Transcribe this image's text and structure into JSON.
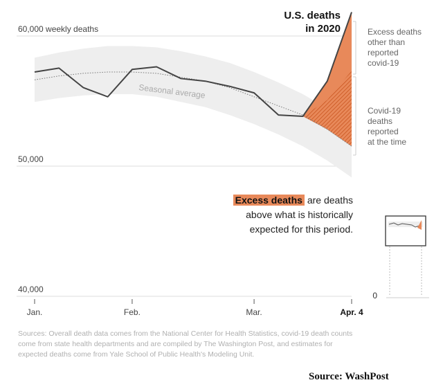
{
  "chart_data": {
    "type": "line",
    "title": "U.S. deaths in 2020",
    "y_axis_label": "60,000 weekly deaths",
    "yticks": [
      {
        "value": 60000,
        "label": "60,000 weekly deaths"
      },
      {
        "value": 50000,
        "label": "50,000"
      },
      {
        "value": 40000,
        "label": "40,000"
      }
    ],
    "ylim": [
      40000,
      61500
    ],
    "xticks": [
      {
        "week": 0,
        "label": "Jan."
      },
      {
        "week": 4,
        "label": "Feb."
      },
      {
        "week": 9,
        "label": "Mar."
      },
      {
        "week": 13,
        "label": "Apr. 4"
      }
    ],
    "series": [
      {
        "name": "U.S. deaths in 2020",
        "weeks": [
          0,
          1,
          2,
          3,
          4,
          5,
          6,
          7,
          8,
          9,
          10,
          11,
          12,
          13
        ],
        "values": [
          56700,
          57000,
          55500,
          54800,
          56900,
          57100,
          56200,
          56000,
          55600,
          55100,
          53400,
          53300,
          56000,
          61300
        ]
      }
    ],
    "seasonal_average": {
      "label": "Seasonal average",
      "weeks": [
        0,
        1,
        2,
        3,
        4,
        5,
        6,
        7,
        8,
        9,
        10,
        11,
        12,
        13
      ],
      "values": [
        56100,
        56400,
        56600,
        56700,
        56700,
        56600,
        56300,
        56000,
        55500,
        54800,
        54100,
        53400,
        52300,
        51000
      ],
      "band_upper": [
        57800,
        58200,
        58500,
        58700,
        58700,
        58600,
        58300,
        57900,
        57400,
        56700,
        55900,
        55000,
        53900,
        52600
      ],
      "band_lower": [
        54400,
        54700,
        54900,
        55000,
        55000,
        54800,
        54400,
        54000,
        53400,
        52700,
        51900,
        51000,
        49900,
        48600
      ]
    },
    "covid_reported_at_week13": 56800,
    "annotations": {
      "excess_other": "Excess deaths other than reported covid-19",
      "covid_reported": "Covid-19 deaths reported at the time"
    },
    "mini_axis_label": "0"
  },
  "text": {
    "title_line1": "U.S. deaths",
    "title_line2": "in 2020",
    "seasonal_label": "Seasonal average",
    "annot_excess_lines": [
      "Excess deaths",
      "other than",
      "reported",
      "covid-19"
    ],
    "annot_covid_lines": [
      "Covid-19",
      "deaths",
      "reported",
      "at the time"
    ],
    "explain_highlight": "Excess deaths",
    "explain_rest1": " are deaths",
    "explain_rest2": "above what is historically",
    "explain_rest3": "expected for this period.",
    "sources": "Sources: Overall death data comes from the National Center for Health Statistics, covid-19 death counts come from state health departments and are compiled by The Washington Post, and estimates for expected deaths come from Yale School of Public Health's Modeling Unit.",
    "credit": "Source:  WashPost"
  },
  "colors": {
    "line": "#444444",
    "excess": "#e8895a",
    "covid_hatch": "#d9692e",
    "band": "#eeeeee",
    "grid": "#dddddd"
  }
}
